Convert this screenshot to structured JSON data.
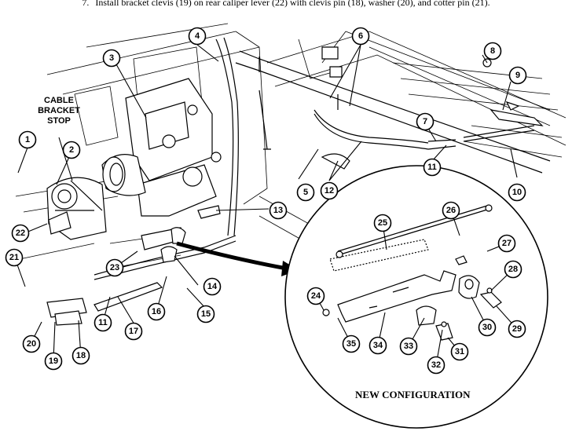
{
  "instruction": {
    "number": "7.",
    "text": "Install bracket clevis (19) on rear caliper lever (22) with clevis pin (18), washer (20), and cotter pin (21)."
  },
  "labels": {
    "cable_bracket_stop": [
      "CABLE",
      "BRACKET",
      "STOP"
    ]
  },
  "inset_caption": "NEW CONFIGURATION",
  "callouts": [
    "1",
    "2",
    "3",
    "4",
    "5",
    "6",
    "7",
    "8",
    "9",
    "10",
    "11",
    "11",
    "12",
    "13",
    "14",
    "15",
    "16",
    "17",
    "18",
    "19",
    "20",
    "21",
    "22",
    "23",
    "24",
    "25",
    "26",
    "27",
    "28",
    "29",
    "30",
    "31",
    "32",
    "33",
    "34",
    "35"
  ]
}
